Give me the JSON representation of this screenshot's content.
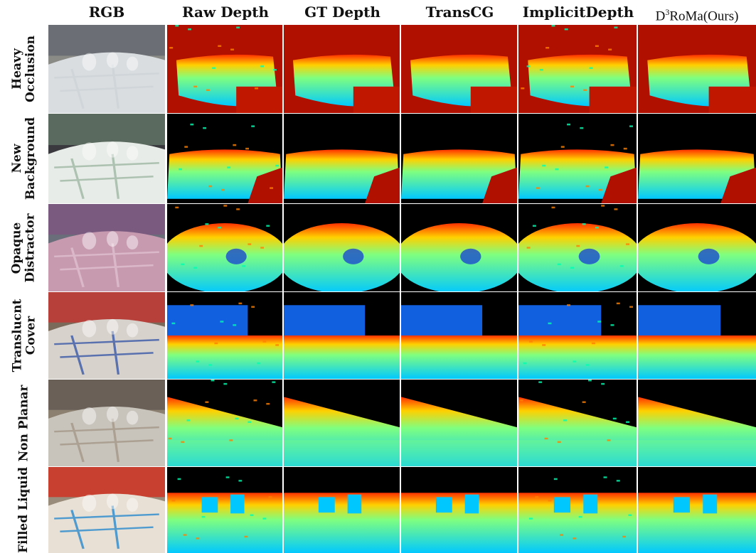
{
  "columns": [
    {
      "key": "rgb",
      "label": "RGB"
    },
    {
      "key": "raw",
      "label": "Raw Depth"
    },
    {
      "key": "gt",
      "label": "GT Depth"
    },
    {
      "key": "transcg",
      "label": "TransCG"
    },
    {
      "key": "implicit",
      "label": "ImplicitDepth"
    },
    {
      "key": "ours",
      "label": "D³RoMa(Ours)",
      "label_prefix": "D",
      "label_sup": "3",
      "label_suffix": "RoMa(Ours)"
    }
  ],
  "rows": [
    {
      "key": "heavy-occlusion",
      "label": "Heavy\nOcclusion"
    },
    {
      "key": "new-background",
      "label": "New\nBackground"
    },
    {
      "key": "opaque-distractor",
      "label": "Opaque\nDistractor"
    },
    {
      "key": "translucent-cover",
      "label": "Translucnt\nCover"
    },
    {
      "key": "non-planar",
      "label": "Non Planar"
    },
    {
      "key": "filled-liquid",
      "label": "Filled Liquid"
    }
  ],
  "colors": {
    "depth_near": "#00c8ff",
    "depth_mid": "#7fff80",
    "depth_far": "#ff3000",
    "background_far": "#b01000",
    "invalid": "#000000"
  }
}
